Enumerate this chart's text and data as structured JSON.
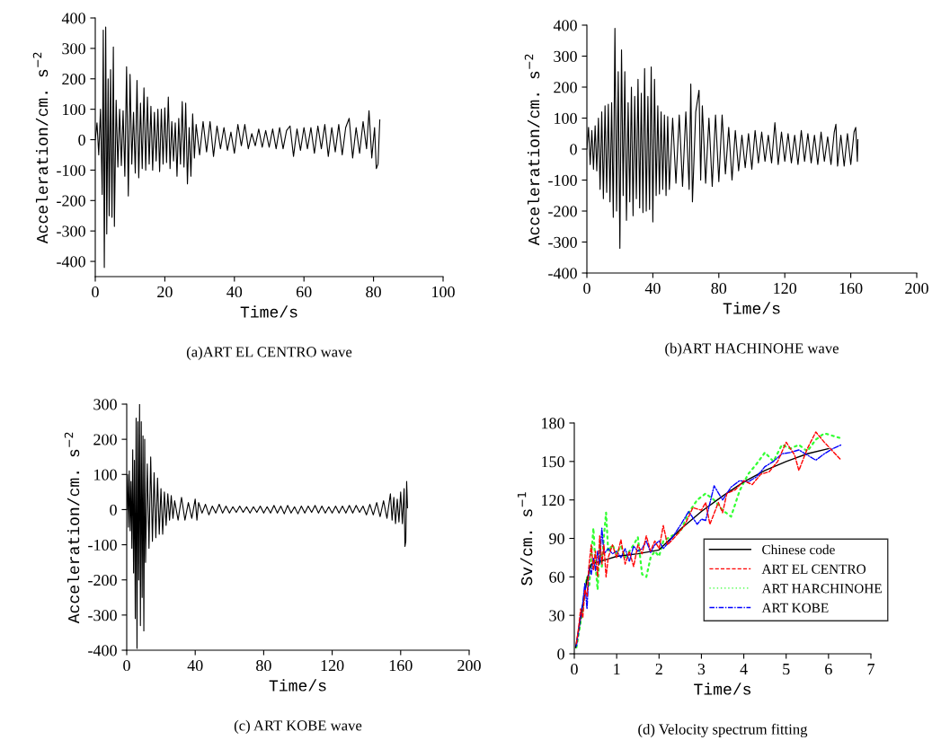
{
  "chart_data": [
    {
      "type": "line",
      "title": "(a)ART EL CENTRO wave",
      "xlabel": "Time/s",
      "ylabel": "Acceleration/cm. s$^{−2}$",
      "xlim": [
        0,
        100
      ],
      "ylim": [
        -450,
        400
      ],
      "xticks": [
        0,
        20,
        40,
        60,
        80,
        100
      ],
      "yticks": [
        -400,
        -300,
        -200,
        -100,
        0,
        100,
        200,
        300,
        400
      ],
      "series": [
        {
          "color": "#000000",
          "x": [
            0,
            0.5,
            1,
            1.5,
            2,
            2.3,
            2.6,
            3,
            3.3,
            3.7,
            4,
            4.4,
            4.8,
            5.2,
            5.5,
            6,
            6.5,
            7,
            7.5,
            8,
            8.5,
            9,
            9.5,
            10,
            10.5,
            11,
            11.5,
            12,
            12.5,
            13,
            13.5,
            14,
            14.5,
            15,
            15.5,
            16,
            16.5,
            17,
            17.5,
            18,
            18.5,
            19,
            19.5,
            20,
            20.5,
            21,
            21.5,
            22,
            22.5,
            23,
            23.5,
            24,
            24.5,
            25,
            25.5,
            26,
            26.5,
            27,
            27.5,
            28,
            28.5,
            29,
            30,
            31,
            32,
            33,
            34,
            35,
            36,
            37,
            38,
            39,
            40,
            41,
            42,
            43,
            44,
            45,
            46,
            47,
            48,
            49,
            50,
            51,
            52,
            53,
            54,
            55,
            56,
            57,
            58,
            59,
            60,
            61,
            62,
            63,
            64,
            65,
            66,
            67,
            68,
            69,
            70,
            71,
            72,
            73,
            74,
            75,
            76,
            77,
            78,
            78.7,
            79.5,
            80.3,
            80.8,
            81.3,
            81.8
          ],
          "values": [
            0,
            55,
            -50,
            100,
            -180,
            360,
            -420,
            370,
            -310,
            200,
            -250,
            230,
            -255,
            305,
            -285,
            130,
            -90,
            100,
            -85,
            95,
            -120,
            240,
            -185,
            215,
            -80,
            90,
            -110,
            195,
            -125,
            120,
            -95,
            170,
            -100,
            140,
            -80,
            110,
            -100,
            90,
            -70,
            100,
            -105,
            100,
            -80,
            105,
            -75,
            140,
            -95,
            60,
            -70,
            55,
            -120,
            70,
            -80,
            125,
            -90,
            120,
            -145,
            40,
            -120,
            85,
            -60,
            50,
            -50,
            60,
            -40,
            60,
            -55,
            45,
            -30,
            40,
            -35,
            25,
            -45,
            50,
            -20,
            50,
            -30,
            20,
            -20,
            35,
            -25,
            30,
            -25,
            35,
            -30,
            40,
            -30,
            30,
            45,
            -55,
            35,
            -35,
            40,
            -30,
            40,
            -45,
            45,
            -30,
            50,
            -55,
            40,
            -40,
            50,
            -50,
            40,
            70,
            -60,
            40,
            -45,
            60,
            -30,
            95,
            -60,
            40,
            -95,
            -80,
            65
          ]
        }
      ]
    },
    {
      "type": "line",
      "title": "(b)ART HACHINOHE wave",
      "xlabel": "Time/s",
      "ylabel": "Acceleration/cm. s$^{−2}$",
      "xlim": [
        0,
        200
      ],
      "ylim": [
        -400,
        400
      ],
      "xticks": [
        0,
        40,
        80,
        120,
        160,
        200
      ],
      "yticks": [
        -400,
        -300,
        -200,
        -100,
        0,
        100,
        200,
        300,
        400
      ],
      "series": [
        {
          "color": "#000000",
          "x": [
            0,
            1,
            2,
            3,
            4,
            5,
            6,
            7,
            8,
            9,
            10,
            11,
            12,
            13,
            14,
            15,
            16,
            17,
            18,
            19,
            20,
            21,
            22,
            23,
            24,
            25,
            26,
            27,
            28,
            29,
            30,
            31,
            32,
            33,
            34,
            35,
            36,
            37,
            38,
            39,
            40,
            41,
            42,
            43,
            44,
            45,
            46,
            47,
            48,
            49,
            50,
            52,
            54,
            56,
            58,
            60,
            62,
            63,
            64,
            66,
            68,
            69,
            70,
            72,
            74,
            76,
            78,
            80,
            82,
            84,
            86,
            88,
            90,
            92,
            94,
            96,
            98,
            100,
            102,
            104,
            106,
            108,
            110,
            112,
            114,
            116,
            118,
            120,
            122,
            124,
            126,
            128,
            130,
            132,
            134,
            136,
            138,
            140,
            142,
            144,
            146,
            148,
            150,
            151,
            152,
            154,
            156,
            158,
            160,
            162,
            163,
            164,
            164.3
          ],
          "values": [
            0,
            70,
            -50,
            60,
            -65,
            75,
            -70,
            100,
            -130,
            120,
            -160,
            140,
            -140,
            145,
            -170,
            150,
            -220,
            390,
            -200,
            250,
            -320,
            320,
            -150,
            250,
            -230,
            150,
            -170,
            200,
            -215,
            170,
            -160,
            225,
            -190,
            180,
            -205,
            260,
            -200,
            170,
            -195,
            265,
            -235,
            225,
            -150,
            140,
            -145,
            120,
            -130,
            110,
            -150,
            105,
            -130,
            100,
            -110,
            110,
            -120,
            120,
            -130,
            210,
            -170,
            120,
            190,
            -100,
            140,
            -110,
            100,
            -120,
            110,
            -105,
            110,
            -80,
            70,
            -100,
            60,
            -70,
            45,
            -60,
            50,
            -65,
            60,
            -45,
            55,
            -40,
            45,
            -45,
            85,
            -50,
            55,
            -40,
            50,
            -45,
            45,
            -50,
            60,
            -40,
            50,
            -45,
            45,
            -50,
            55,
            -40,
            40,
            -50,
            55,
            80,
            -55,
            45,
            -55,
            50,
            -50,
            55,
            70,
            -40,
            30
          ]
        }
      ]
    },
    {
      "type": "line",
      "title": "(c) ART KOBE wave",
      "xlabel": "Time/s",
      "ylabel": "Acceleration/cm. s$^{−2}$",
      "xlim": [
        0,
        200
      ],
      "ylim": [
        -400,
        300
      ],
      "xticks": [
        0,
        40,
        80,
        120,
        160,
        200
      ],
      "yticks": [
        -400,
        -300,
        -200,
        -100,
        0,
        100,
        200,
        300
      ],
      "series": [
        {
          "color": "#000000",
          "x": [
            0,
            0.5,
            1,
            1.5,
            2,
            2.5,
            3,
            3.5,
            4,
            4.5,
            5,
            5.5,
            6,
            6.5,
            7,
            7.5,
            8,
            8.5,
            9,
            9.5,
            10,
            10.5,
            11,
            12,
            13,
            14,
            15,
            16,
            17,
            18,
            19,
            20,
            21,
            22,
            23,
            24,
            25,
            26,
            27,
            28,
            30,
            32,
            34,
            36,
            38,
            40,
            41,
            42,
            44,
            46,
            48,
            50,
            52,
            54,
            56,
            58,
            60,
            62,
            64,
            66,
            68,
            70,
            72,
            74,
            76,
            78,
            80,
            82,
            84,
            86,
            88,
            90,
            92,
            94,
            96,
            98,
            100,
            102,
            104,
            106,
            108,
            110,
            112,
            114,
            116,
            118,
            120,
            122,
            124,
            126,
            128,
            130,
            132,
            134,
            136,
            138,
            140,
            142,
            144,
            146,
            148,
            150,
            152,
            154,
            155,
            156,
            157,
            158,
            159,
            160,
            161,
            162,
            162.5,
            163,
            163.5,
            164
          ],
          "values": [
            0,
            100,
            -50,
            110,
            -60,
            80,
            -110,
            170,
            -180,
            140,
            -310,
            260,
            -395,
            250,
            -200,
            300,
            -330,
            250,
            -250,
            210,
            -345,
            200,
            -150,
            130,
            -110,
            150,
            -90,
            105,
            -80,
            90,
            -70,
            60,
            -70,
            50,
            -45,
            45,
            -30,
            40,
            -25,
            25,
            -30,
            35,
            -30,
            20,
            -25,
            30,
            -30,
            20,
            -10,
            15,
            -15,
            10,
            -10,
            15,
            -10,
            10,
            -10,
            8,
            -8,
            10,
            -8,
            8,
            -10,
            8,
            -8,
            10,
            -10,
            8,
            -10,
            12,
            -10,
            10,
            -12,
            12,
            -10,
            8,
            -12,
            10,
            -10,
            10,
            -8,
            12,
            -10,
            10,
            -10,
            8,
            -10,
            10,
            -10,
            10,
            -10,
            12,
            -10,
            12,
            -8,
            10,
            -15,
            15,
            -15,
            20,
            -20,
            25,
            -25,
            45,
            -30,
            35,
            -40,
            30,
            -35,
            50,
            -40,
            60,
            -105,
            -90,
            80,
            5
          ]
        }
      ]
    },
    {
      "type": "line",
      "title": "(d) Velocity spectrum fitting",
      "xlabel": "Time/s",
      "ylabel": "Sv/cm. s$^{−1}$",
      "xlim": [
        0,
        7
      ],
      "ylim": [
        0,
        180
      ],
      "xticks": [
        0,
        1,
        2,
        3,
        4,
        5,
        6,
        7
      ],
      "yticks": [
        0,
        30,
        60,
        90,
        120,
        150,
        180
      ],
      "legend": "right",
      "series": [
        {
          "name": "Chinese code",
          "color": "#000000",
          "line_style": "solid",
          "x": [
            0.03,
            0.1,
            0.2,
            0.3,
            0.4,
            0.6,
            0.8,
            1.0,
            1.5,
            2.0,
            2.5,
            3.0,
            3.5,
            4.0,
            4.5,
            5.0,
            5.5,
            6.0
          ],
          "values": [
            5,
            18,
            38,
            58,
            70,
            72,
            74,
            76,
            78,
            81,
            97,
            111,
            123,
            134,
            143,
            150,
            156,
            160
          ]
        },
        {
          "name": "ART EL CENTRO",
          "color": "#ff0000",
          "line_style": "dashed",
          "x": [
            0.05,
            0.1,
            0.15,
            0.2,
            0.25,
            0.3,
            0.35,
            0.4,
            0.45,
            0.5,
            0.55,
            0.6,
            0.65,
            0.7,
            0.75,
            0.8,
            0.9,
            1.0,
            1.1,
            1.2,
            1.3,
            1.4,
            1.5,
            1.6,
            1.7,
            1.8,
            1.9,
            2.0,
            2.1,
            2.2,
            2.4,
            2.6,
            2.8,
            3.0,
            3.1,
            3.2,
            3.4,
            3.5,
            3.6,
            3.8,
            4.0,
            4.2,
            4.4,
            4.6,
            4.8,
            5.0,
            5.2,
            5.3,
            5.5,
            5.7,
            5.9,
            6.1,
            6.3
          ],
          "values": [
            8,
            20,
            35,
            28,
            50,
            45,
            70,
            85,
            65,
            80,
            60,
            92,
            70,
            85,
            60,
            75,
            85,
            75,
            89,
            70,
            80,
            68,
            85,
            78,
            92,
            80,
            88,
            82,
            100,
            85,
            92,
            100,
            114,
            112,
            118,
            101,
            118,
            110,
            125,
            128,
            135,
            132,
            140,
            142,
            150,
            165,
            155,
            143,
            160,
            173,
            165,
            158,
            151
          ]
        },
        {
          "name": "ART HARCHINOHE",
          "color": "#33ff33",
          "line_style": "dotted",
          "x": [
            0.05,
            0.1,
            0.15,
            0.2,
            0.25,
            0.3,
            0.35,
            0.4,
            0.45,
            0.5,
            0.55,
            0.6,
            0.65,
            0.7,
            0.75,
            0.8,
            0.9,
            1.0,
            1.1,
            1.2,
            1.3,
            1.4,
            1.5,
            1.6,
            1.7,
            1.8,
            1.9,
            2.0,
            2.1,
            2.3,
            2.5,
            2.7,
            2.9,
            3.1,
            3.3,
            3.5,
            3.7,
            3.9,
            4.1,
            4.3,
            4.5,
            4.7,
            4.9,
            5.1,
            5.3,
            5.5,
            5.7,
            5.9,
            6.1,
            6.3
          ],
          "values": [
            5,
            15,
            25,
            35,
            50,
            60,
            52,
            75,
            98,
            70,
            50,
            85,
            68,
            92,
            110,
            80,
            85,
            78,
            84,
            75,
            80,
            85,
            91,
            62,
            60,
            75,
            80,
            76,
            88,
            92,
            95,
            110,
            120,
            125,
            120,
            112,
            107,
            127,
            140,
            148,
            157,
            150,
            163,
            160,
            163,
            158,
            167,
            172,
            170,
            168
          ]
        },
        {
          "name": "ART KOBE",
          "color": "#0000ff",
          "line_style": "dashdot",
          "x": [
            0.05,
            0.1,
            0.15,
            0.2,
            0.25,
            0.3,
            0.35,
            0.4,
            0.45,
            0.5,
            0.55,
            0.6,
            0.65,
            0.7,
            0.8,
            0.9,
            1.0,
            1.1,
            1.2,
            1.3,
            1.4,
            1.5,
            1.6,
            1.7,
            1.8,
            1.9,
            2.0,
            2.1,
            2.3,
            2.5,
            2.7,
            2.9,
            3.0,
            3.1,
            3.3,
            3.5,
            3.7,
            3.9,
            4.1,
            4.3,
            4.5,
            4.7,
            4.9,
            5.1,
            5.3,
            5.5,
            5.7,
            5.9,
            6.1,
            6.3
          ],
          "values": [
            6,
            18,
            30,
            40,
            55,
            35,
            68,
            62,
            75,
            65,
            80,
            70,
            98,
            78,
            82,
            78,
            80,
            75,
            82,
            72,
            84,
            80,
            82,
            88,
            79,
            85,
            88,
            82,
            90,
            100,
            111,
            101,
            105,
            104,
            131,
            120,
            130,
            135,
            134,
            138,
            146,
            150,
            156,
            157,
            159,
            155,
            151,
            156,
            160,
            163
          ]
        }
      ]
    }
  ]
}
